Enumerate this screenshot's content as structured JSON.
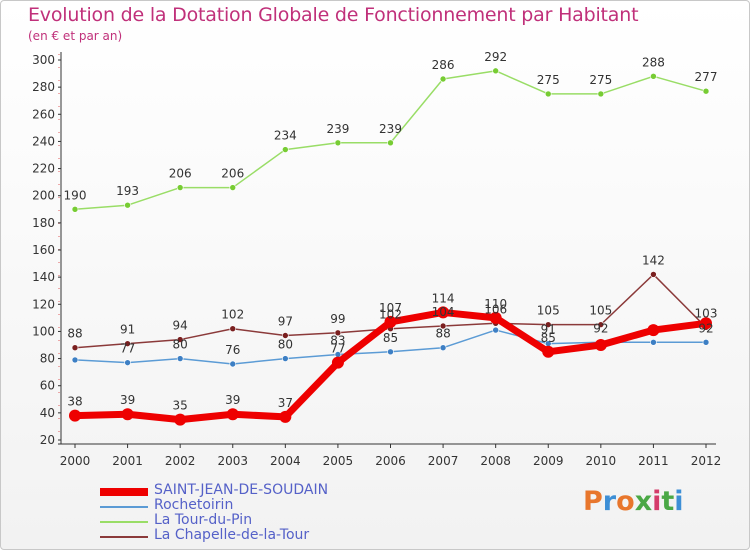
{
  "header": {
    "title": "Evolution de la Dotation Globale de Fonctionnement par Habitant",
    "subtitle": "(en € et par an)"
  },
  "logo": {
    "text": "Proxiti",
    "colors": [
      "#e8762c",
      "#3d8fd6",
      "#e8762c",
      "#4aa845",
      "#d43c6a",
      "#4aa845",
      "#3d8fd6"
    ]
  },
  "chart_data": {
    "type": "line",
    "title": "Evolution de la Dotation Globale de Fonctionnement par Habitant",
    "subtitle": "(en € et par an)",
    "x": [
      "2000",
      "2001",
      "2002",
      "2003",
      "2004",
      "2005",
      "2006",
      "2007",
      "2008",
      "2009",
      "2010",
      "2011",
      "2012"
    ],
    "ylim": [
      20,
      300
    ],
    "yticks": [
      20,
      40,
      60,
      80,
      100,
      120,
      140,
      160,
      180,
      200,
      220,
      240,
      260,
      280,
      300
    ],
    "grid": false,
    "legend_position": "bottom-left",
    "series": [
      {
        "name": "SAINT-JEAN-DE-SOUDAIN",
        "color": "#ee0000",
        "marker": "#ee0000",
        "width": 7,
        "values": [
          38,
          39,
          35,
          39,
          37,
          77,
          107,
          114,
          110,
          85,
          90,
          101,
          106
        ],
        "labels": [
          "38",
          "39",
          "35",
          "39",
          "37",
          "77",
          "107",
          "114",
          "110",
          "85",
          "",
          "",
          ""
        ]
      },
      {
        "name": "Rochetoirin",
        "color": "#5b9bd5",
        "marker": "#3d7fc4",
        "width": 1.5,
        "values": [
          79,
          77,
          80,
          76,
          80,
          83,
          85,
          88,
          101,
          91,
          92,
          92,
          92
        ],
        "labels": [
          "",
          "77",
          "80",
          "76",
          "80",
          "83",
          "85",
          "88",
          "",
          "91",
          "92",
          "",
          "92"
        ]
      },
      {
        "name": "La Tour-du-Pin",
        "color": "#99dd66",
        "marker": "#77cc33",
        "width": 1.5,
        "values": [
          190,
          193,
          206,
          206,
          234,
          239,
          239,
          286,
          292,
          275,
          275,
          288,
          277
        ],
        "labels": [
          "190",
          "193",
          "206",
          "206",
          "234",
          "239",
          "239",
          "286",
          "292",
          "275",
          "275",
          "288",
          "277"
        ]
      },
      {
        "name": "La Chapelle-de-la-Tour",
        "color": "#8b3a3a",
        "marker": "#7a1f1f",
        "width": 1.5,
        "values": [
          88,
          91,
          94,
          102,
          97,
          99,
          102,
          104,
          106,
          105,
          105,
          142,
          103
        ],
        "labels": [
          "88",
          "91",
          "94",
          "102",
          "97",
          "99",
          "102",
          "104",
          "106",
          "105",
          "105",
          "142",
          "103"
        ]
      }
    ]
  }
}
